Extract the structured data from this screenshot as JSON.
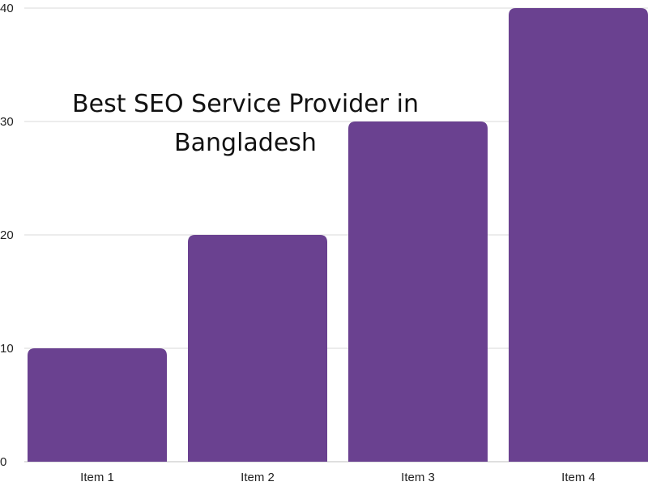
{
  "chart_data": {
    "type": "bar",
    "title_lines": [
      "Best SEO Service Provider in",
      "Bangladesh"
    ],
    "categories": [
      "Item 1",
      "Item 2",
      "Item 3",
      "Item 4"
    ],
    "values": [
      10,
      20,
      30,
      40
    ],
    "ylim": [
      0,
      40
    ],
    "yticks": [
      "0",
      "10",
      "20",
      "30",
      "40"
    ],
    "grid": true,
    "bar_color": "#6a4190",
    "grid_color": "#d9d9d9"
  }
}
